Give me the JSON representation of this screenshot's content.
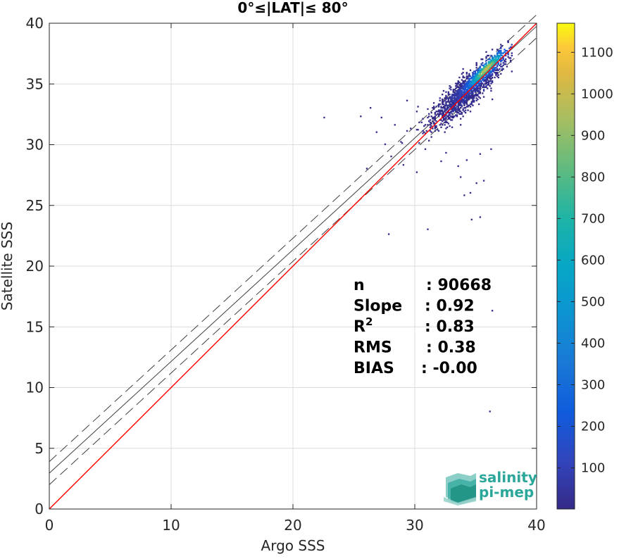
{
  "chart_data": {
    "type": "heatmap",
    "title": "0°≤|LAT|≤ 80°",
    "xlabel": "Argo SSS",
    "ylabel": "Satellite SSS",
    "xlim": [
      0,
      40
    ],
    "ylim": [
      0,
      40
    ],
    "xticks": [
      "0",
      "10",
      "20",
      "30",
      "40"
    ],
    "yticks": [
      "0",
      "5",
      "10",
      "15",
      "20",
      "25",
      "30",
      "35",
      "40"
    ],
    "grid": true,
    "colorbar": {
      "min": 1,
      "max": 1170,
      "ticks": [
        "100",
        "200",
        "300",
        "400",
        "500",
        "600",
        "700",
        "800",
        "900",
        "1000",
        "1100"
      ],
      "colormap": "parula"
    },
    "lines": [
      {
        "kind": "identity",
        "slope": 1.0,
        "intercept": 0.0,
        "color": "#ff0000",
        "style": "solid"
      },
      {
        "kind": "regression",
        "slope": 0.92,
        "intercept": 2.95,
        "color": "#404040",
        "style": "solid"
      },
      {
        "kind": "regression-upper",
        "slope": 0.92,
        "intercept": 3.9,
        "color": "#404040",
        "style": "dashed"
      },
      {
        "kind": "regression-lower",
        "slope": 0.92,
        "intercept": 2.0,
        "color": "#404040",
        "style": "dashed"
      }
    ],
    "density_clusters": [
      {
        "center": [
          34.6,
          34.8
        ],
        "spread": [
          1.5,
          1.4
        ],
        "corr": 0.9,
        "n": 1400,
        "peak": 800
      },
      {
        "center": [
          35.8,
          36.2
        ],
        "spread": [
          0.6,
          0.6
        ],
        "corr": 0.95,
        "n": 350,
        "peak": 1100
      },
      {
        "center": [
          33.5,
          33.4
        ],
        "spread": [
          1.0,
          0.8
        ],
        "corr": 0.7,
        "n": 300,
        "peak": 300
      }
    ],
    "scattered_points": [
      [
        22.5,
        32.2
      ],
      [
        27.8,
        22.6
      ],
      [
        31.0,
        23.0
      ],
      [
        34.6,
        23.8
      ],
      [
        35.4,
        24.0
      ],
      [
        36.4,
        16.4
      ],
      [
        36.1,
        8.1
      ],
      [
        34.0,
        25.8
      ],
      [
        34.5,
        26.0
      ],
      [
        35.0,
        26.8
      ],
      [
        25.5,
        32.4
      ],
      [
        26.3,
        33.0
      ],
      [
        26.8,
        31.0
      ],
      [
        28.0,
        29.0
      ],
      [
        28.8,
        30.2
      ],
      [
        29.6,
        31.3
      ],
      [
        30.1,
        27.7
      ],
      [
        30.5,
        31.8
      ],
      [
        27.5,
        30.0
      ],
      [
        29.0,
        28.3
      ],
      [
        30.8,
        29.6
      ],
      [
        31.4,
        30.6
      ],
      [
        32.1,
        28.6
      ],
      [
        33.5,
        28.2
      ],
      [
        34.2,
        28.7
      ],
      [
        35.4,
        29.2
      ],
      [
        36.3,
        29.6
      ],
      [
        35.6,
        27.0
      ],
      [
        33.8,
        27.4
      ],
      [
        32.5,
        29.3
      ],
      [
        28.4,
        31.6
      ],
      [
        27.2,
        32.2
      ],
      [
        26.0,
        28.0
      ],
      [
        29.3,
        33.6
      ],
      [
        30.2,
        33.1
      ]
    ],
    "stats": [
      {
        "label": "n",
        "sep": ":",
        "value": "90668"
      },
      {
        "label": "Slope",
        "sep": ":",
        "value": "0.92"
      },
      {
        "label": "R",
        "sup": "2",
        "sep": ":",
        "value": "0.83"
      },
      {
        "label": "RMS",
        "sep": ":",
        "value": "0.38"
      },
      {
        "label": "BIAS",
        "sep": ":",
        "value": "-0.00"
      }
    ]
  },
  "logo": {
    "line1": "salinity",
    "line2": "pi-mep",
    "color": "#2ba79a"
  }
}
